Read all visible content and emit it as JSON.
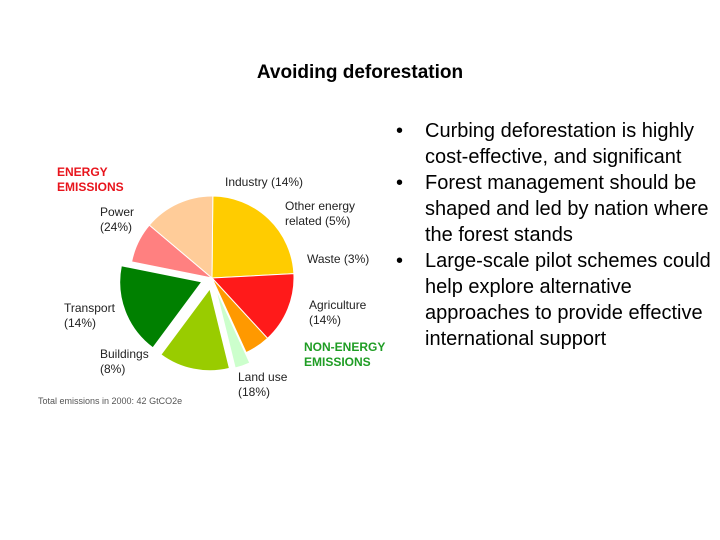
{
  "slide": {
    "title": "Avoiding deforestation",
    "bullets": [
      "Curbing deforestation is highly cost-effective, and significant",
      "Forest management should be shaped and led by nation where the forest stands",
      "Large-scale pilot schemes could help explore alternative approaches to provide effective international support"
    ]
  },
  "chart_data": {
    "type": "pie",
    "groups": [
      {
        "name": "ENERGY EMISSIONS",
        "color": "#e8141c"
      },
      {
        "name": "NON-ENERGY EMISSIONS",
        "color": "#1f9d24"
      }
    ],
    "slices": [
      {
        "label": "Power",
        "pct_label": "(24%)",
        "value": 24,
        "group": "ENERGY EMISSIONS",
        "color": "#ffcc00"
      },
      {
        "label": "Industry",
        "pct_label": "(14%)",
        "value": 14,
        "group": "ENERGY EMISSIONS",
        "color": "#ff1a1a"
      },
      {
        "label": "Other energy related",
        "pct_label": "(5%)",
        "value": 5,
        "group": "ENERGY EMISSIONS",
        "color": "#ff9900"
      },
      {
        "label": "Waste",
        "pct_label": "(3%)",
        "value": 3,
        "group": "NON-ENERGY EMISSIONS",
        "color": "#ccffcc"
      },
      {
        "label": "Agriculture",
        "pct_label": "(14%)",
        "value": 14,
        "group": "NON-ENERGY EMISSIONS",
        "color": "#99cc00"
      },
      {
        "label": "Land use",
        "pct_label": "(18%)",
        "value": 18,
        "group": "NON-ENERGY EMISSIONS",
        "color": "#008000"
      },
      {
        "label": "Buildings",
        "pct_label": "(8%)",
        "value": 8,
        "group": "ENERGY EMISSIONS",
        "color": "#ff8080"
      },
      {
        "label": "Transport",
        "pct_label": "(14%)",
        "value": 14,
        "group": "ENERGY EMISSIONS",
        "color": "#ffcc99"
      }
    ],
    "labels": {
      "industry": "Industry (14%)",
      "other_energy_1": "Other energy",
      "other_energy_2": "related (5%)",
      "waste": "Waste (3%)",
      "agriculture_1": "Agriculture",
      "agriculture_2": "(14%)",
      "land_use_1": "Land use",
      "land_use_2": "(18%)",
      "buildings_1": "Buildings",
      "buildings_2": "(8%)",
      "transport_1": "Transport",
      "transport_2": "(14%)",
      "power_1": "Power",
      "power_2": "(24%)",
      "energy_1": "ENERGY",
      "energy_2": "EMISSIONS",
      "nonenergy_1": "NON-ENERGY",
      "nonenergy_2": "EMISSIONS"
    },
    "footnote": "Total emissions in 2000: 42 GtCO2e"
  }
}
